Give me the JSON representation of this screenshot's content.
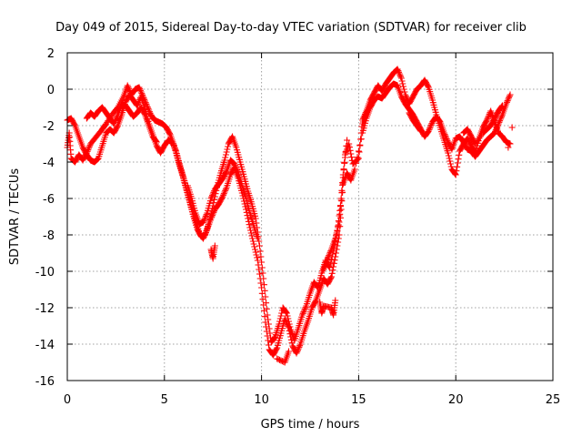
{
  "chart_data": {
    "type": "scatter",
    "title": "Day 049 of 2015, Sidereal Day-to-day VTEC variation (SDTVAR) for receiver clib",
    "xlabel": "GPS time / hours",
    "ylabel": "SDTVAR / TECUs",
    "xlim": [
      0,
      25
    ],
    "ylim": [
      -16,
      2
    ],
    "xticks": [
      "0",
      "5",
      "10",
      "15",
      "20",
      "25"
    ],
    "yticks": [
      "2",
      "0",
      "-2",
      "-4",
      "-6",
      "-8",
      "-10",
      "-12",
      "-14",
      "-16"
    ],
    "grid": true,
    "marker": "+",
    "color": "#ff0000",
    "series": [
      {
        "points": [
          [
            0.0,
            -3.2
          ],
          [
            0.1,
            -2.4
          ],
          [
            0.2,
            -3.8
          ],
          [
            0.4,
            -4.0
          ],
          [
            0.6,
            -3.6
          ],
          [
            0.8,
            -3.9
          ],
          [
            1.0,
            -3.5
          ],
          [
            1.2,
            -3.0
          ],
          [
            1.5,
            -2.6
          ],
          [
            1.8,
            -2.2
          ],
          [
            2.0,
            -1.9
          ],
          [
            2.3,
            -1.4
          ],
          [
            2.6,
            -1.0
          ],
          [
            2.9,
            -0.4
          ],
          [
            3.1,
            0.2
          ],
          [
            3.3,
            -0.3
          ],
          [
            3.5,
            0.0
          ],
          [
            3.7,
            0.1
          ],
          [
            3.9,
            -0.4
          ],
          [
            4.1,
            -0.9
          ],
          [
            4.3,
            -1.4
          ],
          [
            4.5,
            -1.7
          ],
          [
            4.7,
            -1.8
          ],
          [
            4.9,
            -1.9
          ],
          [
            5.1,
            -2.1
          ],
          [
            5.3,
            -2.5
          ],
          [
            5.5,
            -3.1
          ],
          [
            5.7,
            -3.9
          ],
          [
            5.9,
            -4.6
          ],
          [
            6.1,
            -5.4
          ],
          [
            6.3,
            -6.2
          ],
          [
            6.5,
            -7.0
          ],
          [
            6.7,
            -7.7
          ],
          [
            6.9,
            -8.1
          ],
          [
            7.1,
            -8.0
          ],
          [
            7.3,
            -7.3
          ],
          [
            7.5,
            -6.4
          ],
          [
            7.7,
            -5.4
          ],
          [
            7.9,
            -4.6
          ],
          [
            8.1,
            -3.9
          ],
          [
            8.3,
            -3.0
          ],
          [
            8.5,
            -2.6
          ],
          [
            8.7,
            -3.2
          ],
          [
            8.9,
            -4.0
          ],
          [
            9.1,
            -4.8
          ],
          [
            9.3,
            -5.6
          ],
          [
            9.5,
            -6.3
          ],
          [
            9.7,
            -7.1
          ],
          [
            9.9,
            -8.6
          ],
          [
            10.1,
            -10.4
          ],
          [
            10.3,
            -12.4
          ],
          [
            10.5,
            -13.9
          ],
          [
            10.7,
            -13.6
          ],
          [
            10.9,
            -12.9
          ],
          [
            11.1,
            -12.0
          ],
          [
            11.3,
            -12.3
          ],
          [
            11.5,
            -13.2
          ],
          [
            11.7,
            -13.8
          ],
          [
            11.9,
            -13.1
          ],
          [
            12.1,
            -12.4
          ],
          [
            12.3,
            -11.9
          ],
          [
            12.5,
            -11.2
          ],
          [
            12.7,
            -10.6
          ],
          [
            12.9,
            -10.9
          ],
          [
            13.1,
            -10.1
          ],
          [
            13.3,
            -9.4
          ],
          [
            13.5,
            -9.8
          ],
          [
            13.7,
            -8.9
          ],
          [
            13.9,
            -7.8
          ],
          [
            14.1,
            -6.1
          ],
          [
            14.3,
            -3.6
          ],
          [
            14.5,
            -3.0
          ],
          [
            14.7,
            -4.1
          ],
          [
            15.0,
            -3.8
          ],
          [
            15.2,
            -1.7
          ],
          [
            15.4,
            -1.2
          ],
          [
            15.6,
            -0.6
          ],
          [
            15.8,
            -0.2
          ],
          [
            16.0,
            0.2
          ],
          [
            16.2,
            -0.1
          ],
          [
            16.4,
            0.3
          ],
          [
            16.6,
            0.6
          ],
          [
            16.8,
            0.9
          ],
          [
            17.0,
            1.1
          ],
          [
            17.2,
            0.6
          ],
          [
            17.4,
            -0.3
          ],
          [
            17.6,
            -0.8
          ],
          [
            17.8,
            -0.4
          ],
          [
            18.0,
            0.0
          ],
          [
            18.2,
            0.2
          ],
          [
            18.4,
            0.5
          ],
          [
            18.6,
            0.1
          ],
          [
            18.8,
            -0.6
          ],
          [
            19.0,
            -1.4
          ],
          [
            19.2,
            -2.1
          ],
          [
            19.4,
            -2.8
          ],
          [
            19.6,
            -3.5
          ],
          [
            19.8,
            -4.4
          ],
          [
            20.0,
            -4.7
          ],
          [
            20.2,
            -3.4
          ],
          [
            20.4,
            -3.0
          ],
          [
            20.6,
            -2.7
          ],
          [
            20.8,
            -3.1
          ],
          [
            21.0,
            -3.5
          ],
          [
            21.2,
            -2.7
          ],
          [
            21.4,
            -2.1
          ],
          [
            21.6,
            -1.7
          ],
          [
            21.8,
            -1.2
          ],
          [
            22.0,
            -1.8
          ],
          [
            22.2,
            -2.4
          ],
          [
            22.4,
            -2.6
          ],
          [
            22.6,
            -2.9
          ],
          [
            22.8,
            -3.0
          ]
        ]
      },
      {
        "points": [
          [
            0.0,
            -1.7
          ],
          [
            0.2,
            -1.6
          ],
          [
            0.4,
            -2.0
          ],
          [
            0.6,
            -2.6
          ],
          [
            0.8,
            -3.2
          ],
          [
            1.0,
            -3.6
          ],
          [
            1.2,
            -3.9
          ],
          [
            1.4,
            -4.0
          ],
          [
            1.6,
            -3.8
          ],
          [
            1.8,
            -3.1
          ],
          [
            2.0,
            -2.4
          ],
          [
            2.2,
            -2.2
          ],
          [
            2.4,
            -2.4
          ],
          [
            2.6,
            -2.0
          ],
          [
            2.8,
            -1.4
          ],
          [
            3.0,
            -0.7
          ],
          [
            3.2,
            -0.3
          ],
          [
            3.4,
            -0.6
          ],
          [
            3.6,
            -0.9
          ],
          [
            3.8,
            -0.4
          ],
          [
            4.0,
            -1.1
          ],
          [
            4.2,
            -1.9
          ],
          [
            4.4,
            -2.5
          ],
          [
            4.6,
            -3.1
          ],
          [
            4.8,
            -3.5
          ],
          [
            5.0,
            -3.1
          ],
          [
            5.2,
            -2.8
          ],
          [
            5.4,
            -2.9
          ],
          [
            5.6,
            -3.4
          ],
          [
            5.8,
            -4.2
          ],
          [
            6.0,
            -4.9
          ],
          [
            6.2,
            -5.7
          ],
          [
            6.4,
            -6.5
          ],
          [
            6.6,
            -7.2
          ],
          [
            6.8,
            -7.9
          ],
          [
            7.0,
            -8.2
          ],
          [
            7.2,
            -7.7
          ],
          [
            7.4,
            -7.1
          ],
          [
            7.6,
            -6.6
          ],
          [
            7.8,
            -6.3
          ],
          [
            8.0,
            -5.9
          ],
          [
            8.2,
            -5.4
          ],
          [
            8.4,
            -4.7
          ],
          [
            8.6,
            -4.3
          ],
          [
            8.8,
            -4.9
          ],
          [
            9.0,
            -5.7
          ],
          [
            9.2,
            -6.6
          ],
          [
            9.4,
            -7.6
          ],
          [
            9.6,
            -8.5
          ],
          [
            9.8,
            -9.4
          ],
          [
            10.0,
            -10.9
          ],
          [
            10.2,
            -12.8
          ],
          [
            10.4,
            -14.3
          ],
          [
            10.6,
            -14.6
          ],
          [
            10.8,
            -14.2
          ],
          [
            11.0,
            -13.4
          ],
          [
            11.2,
            -12.6
          ],
          [
            11.4,
            -13.1
          ],
          [
            11.6,
            -14.1
          ],
          [
            11.8,
            -14.5
          ],
          [
            12.0,
            -14.0
          ],
          [
            12.2,
            -13.3
          ],
          [
            12.4,
            -12.7
          ],
          [
            12.6,
            -12.0
          ],
          [
            12.8,
            -11.6
          ],
          [
            13.0,
            -11.0
          ],
          [
            13.2,
            -10.4
          ],
          [
            13.4,
            -10.7
          ],
          [
            13.6,
            -10.3
          ],
          [
            13.8,
            -9.2
          ],
          [
            14.0,
            -8.0
          ],
          [
            14.2,
            -5.2
          ],
          [
            14.4,
            -4.6
          ],
          [
            14.6,
            -5.0
          ],
          [
            14.8,
            -4.4
          ],
          [
            15.2,
            -2.4
          ],
          [
            15.4,
            -1.6
          ],
          [
            15.6,
            -1.0
          ],
          [
            15.8,
            -0.6
          ],
          [
            16.0,
            -0.4
          ],
          [
            16.2,
            -0.5
          ],
          [
            16.4,
            -0.2
          ],
          [
            16.6,
            0.1
          ],
          [
            16.8,
            0.3
          ],
          [
            17.0,
            0.2
          ],
          [
            17.2,
            -0.4
          ],
          [
            17.4,
            -0.8
          ],
          [
            17.6,
            -1.1
          ],
          [
            17.8,
            -1.4
          ],
          [
            18.0,
            -1.8
          ],
          [
            18.2,
            -2.2
          ],
          [
            18.4,
            -2.6
          ],
          [
            18.6,
            -2.3
          ],
          [
            18.8,
            -1.8
          ],
          [
            19.0,
            -1.5
          ],
          [
            19.2,
            -1.8
          ],
          [
            19.4,
            -2.4
          ],
          [
            19.6,
            -2.9
          ],
          [
            19.8,
            -3.3
          ],
          [
            20.0,
            -2.7
          ],
          [
            20.2,
            -2.6
          ],
          [
            20.4,
            -2.9
          ],
          [
            20.6,
            -3.3
          ],
          [
            20.8,
            -3.4
          ],
          [
            21.0,
            -3.7
          ],
          [
            21.2,
            -3.4
          ],
          [
            21.4,
            -3.1
          ],
          [
            21.6,
            -2.8
          ],
          [
            21.8,
            -2.6
          ],
          [
            22.0,
            -2.4
          ],
          [
            22.2,
            -1.9
          ],
          [
            22.4,
            -1.4
          ],
          [
            22.6,
            -0.8
          ],
          [
            22.8,
            -0.3
          ]
        ]
      },
      {
        "points": [
          [
            1.0,
            -1.6
          ],
          [
            1.2,
            -1.3
          ],
          [
            1.4,
            -1.5
          ],
          [
            1.6,
            -1.2
          ],
          [
            1.8,
            -1.0
          ],
          [
            2.0,
            -1.3
          ],
          [
            2.2,
            -1.6
          ],
          [
            2.4,
            -1.9
          ],
          [
            2.6,
            -1.4
          ],
          [
            2.8,
            -0.8
          ],
          [
            3.0,
            -0.9
          ],
          [
            3.2,
            -1.2
          ],
          [
            3.4,
            -1.5
          ],
          [
            3.6,
            -1.3
          ],
          [
            3.8,
            -1.0
          ],
          [
            4.0,
            -1.4
          ],
          [
            4.2,
            -2.0
          ],
          [
            4.4,
            -2.6
          ],
          [
            4.6,
            -2.9
          ],
          [
            6.2,
            -5.3
          ],
          [
            6.4,
            -6.0
          ],
          [
            6.6,
            -6.8
          ],
          [
            6.8,
            -7.4
          ],
          [
            7.0,
            -7.3
          ],
          [
            7.2,
            -6.8
          ],
          [
            7.4,
            -6.0
          ],
          [
            7.6,
            -5.5
          ],
          [
            7.8,
            -5.2
          ],
          [
            8.0,
            -4.9
          ],
          [
            8.2,
            -4.5
          ],
          [
            8.4,
            -3.9
          ],
          [
            8.6,
            -4.1
          ],
          [
            8.8,
            -4.6
          ],
          [
            9.0,
            -5.3
          ],
          [
            9.2,
            -6.0
          ],
          [
            9.4,
            -6.8
          ],
          [
            9.6,
            -7.5
          ],
          [
            9.8,
            -8.2
          ],
          [
            13.2,
            -9.9
          ],
          [
            13.4,
            -9.3
          ],
          [
            13.6,
            -8.8
          ],
          [
            13.8,
            -8.2
          ],
          [
            14.0,
            -7.3
          ],
          [
            14.2,
            -4.7
          ],
          [
            14.4,
            -2.8
          ],
          [
            15.2,
            -1.9
          ],
          [
            15.4,
            -1.3
          ],
          [
            15.6,
            -0.9
          ],
          [
            17.6,
            -1.3
          ],
          [
            17.8,
            -1.7
          ],
          [
            18.0,
            -2.0
          ],
          [
            18.2,
            -2.3
          ],
          [
            20.4,
            -2.4
          ],
          [
            20.6,
            -2.2
          ],
          [
            20.8,
            -2.6
          ],
          [
            21.0,
            -3.0
          ],
          [
            21.4,
            -2.4
          ],
          [
            21.6,
            -2.2
          ],
          [
            21.8,
            -2.0
          ],
          [
            22.0,
            -1.6
          ],
          [
            22.2,
            -1.2
          ],
          [
            22.4,
            -0.9
          ]
        ]
      },
      {
        "points": [
          [
            7.4,
            -8.8
          ],
          [
            7.5,
            -9.3
          ],
          [
            7.6,
            -8.6
          ],
          [
            10.8,
            -14.8
          ],
          [
            11.2,
            -15.0
          ],
          [
            11.4,
            -14.4
          ],
          [
            13.0,
            -11.7
          ],
          [
            13.1,
            -12.3
          ],
          [
            13.2,
            -11.9
          ],
          [
            13.6,
            -12.0
          ],
          [
            13.7,
            -12.4
          ],
          [
            13.8,
            -11.6
          ],
          [
            22.9,
            -2.1
          ],
          [
            22.7,
            -3.2
          ]
        ]
      }
    ]
  }
}
